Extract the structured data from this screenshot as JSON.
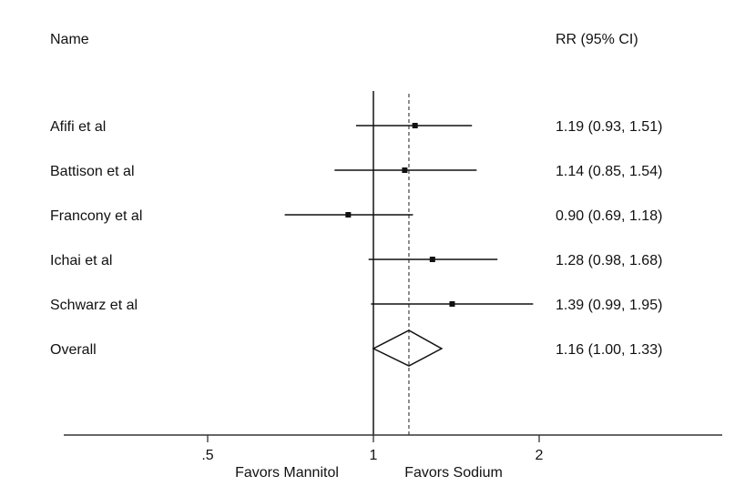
{
  "chart_data": {
    "type": "forest",
    "headers": {
      "name": "Name",
      "effect": "RR (95% CI)"
    },
    "studies": [
      {
        "name": "Afifi et al",
        "rr": 1.19,
        "lo": 0.93,
        "hi": 1.51,
        "label": "1.19 (0.93, 1.51)"
      },
      {
        "name": "Battison et al",
        "rr": 1.14,
        "lo": 0.85,
        "hi": 1.54,
        "label": "1.14 (0.85, 1.54)"
      },
      {
        "name": "Francony et al",
        "rr": 0.9,
        "lo": 0.69,
        "hi": 1.18,
        "label": "0.90 (0.69, 1.18)"
      },
      {
        "name": "Ichai et al",
        "rr": 1.28,
        "lo": 0.98,
        "hi": 1.68,
        "label": "1.28 (0.98, 1.68)"
      },
      {
        "name": "Schwarz et al",
        "rr": 1.39,
        "lo": 0.99,
        "hi": 1.95,
        "label": "1.39 (0.99, 1.95)"
      }
    ],
    "overall": {
      "name": "Overall",
      "rr": 1.16,
      "lo": 1.0,
      "hi": 1.33,
      "label": "1.16 (1.00, 1.33)"
    },
    "x_scale": "log",
    "x_ticks": [
      {
        "value": 0.5,
        "label": ".5"
      },
      {
        "value": 1,
        "label": "1"
      },
      {
        "value": 2,
        "label": "2"
      }
    ],
    "xlim": [
      0.3,
      4.0
    ],
    "null_line": 1,
    "xlabel_left": "Favors Mannitol",
    "xlabel_right": "Favors Sodium"
  }
}
